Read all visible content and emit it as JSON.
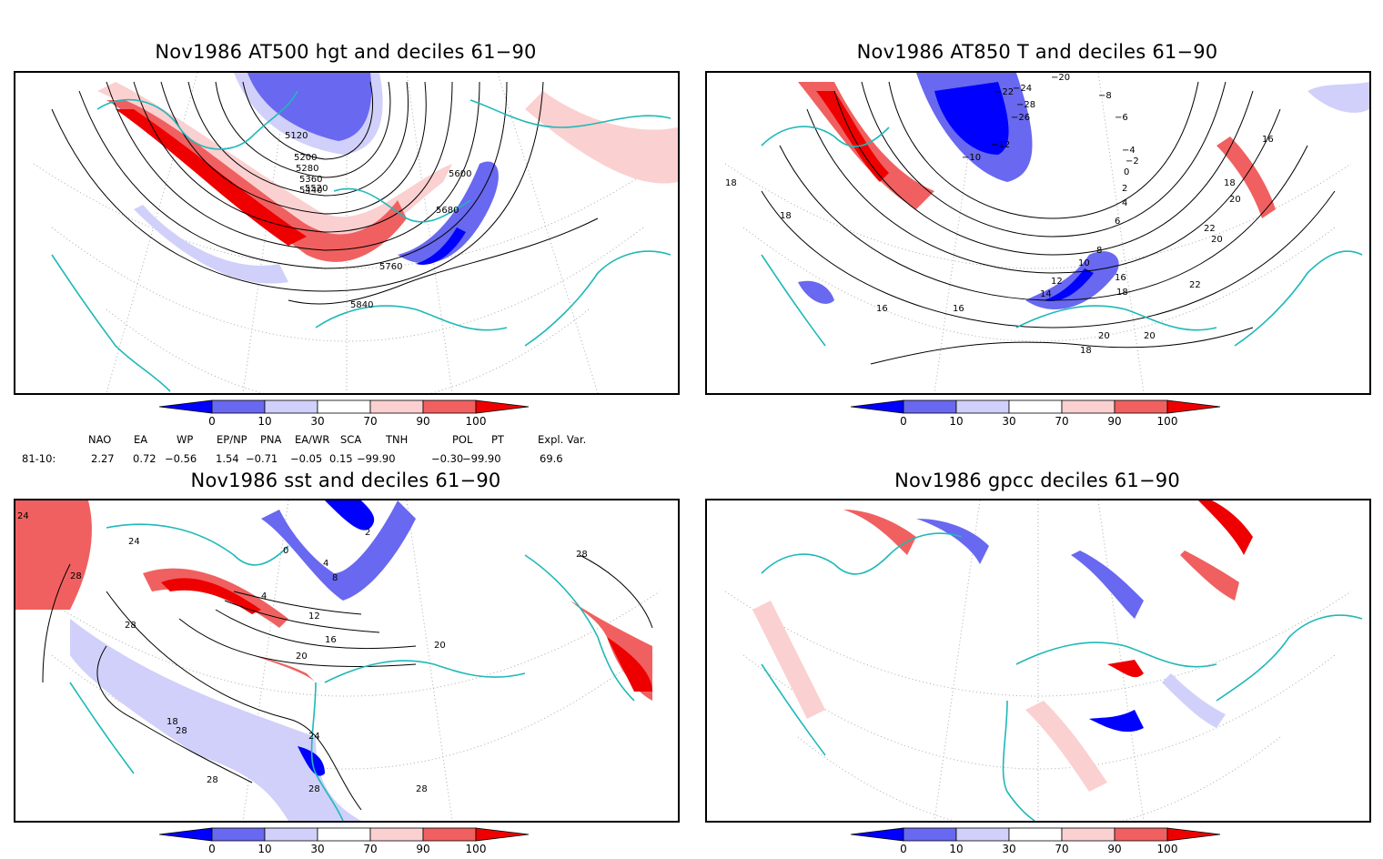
{
  "panels": [
    {
      "id": "hgt",
      "title": "Nov1986 AT500 hgt and deciles 61−90",
      "labels": [
        "5120",
        "5200",
        "5280",
        "5360",
        "5440",
        "5520",
        "5600",
        "5680",
        "5760",
        "5840"
      ]
    },
    {
      "id": "t850",
      "title": "Nov1986 AT850 T and deciles 61−90",
      "labels": [
        "−20",
        "−22",
        "−24",
        "−26",
        "−28",
        "−10",
        "−12",
        "−8",
        "−6",
        "−4",
        "−2",
        "0",
        "2",
        "4",
        "6",
        "8",
        "10",
        "12",
        "14",
        "16",
        "16",
        "16",
        "16",
        "18",
        "18",
        "18",
        "18",
        "20",
        "20",
        "20",
        "22",
        "22",
        "18",
        "20"
      ]
    },
    {
      "id": "sst",
      "title": "Nov1986 sst and deciles 61−90",
      "labels": [
        "24",
        "24",
        "28",
        "28",
        "28",
        "0",
        "2",
        "4",
        "4",
        "8",
        "12",
        "16",
        "20",
        "20",
        "24",
        "28",
        "28",
        "28",
        "18",
        "28"
      ]
    },
    {
      "id": "gpcc",
      "title": "Nov1986 gpcc deciles 61−90",
      "labels": []
    }
  ],
  "colorbar": {
    "ticks": [
      "0",
      "10",
      "30",
      "70",
      "90",
      "100"
    ],
    "colors": [
      "#0000ff",
      "#6868f0",
      "#d0d0fa",
      "#ffffff",
      "#fbd0d0",
      "#f06060",
      "#ee0000"
    ]
  },
  "indices": {
    "headers": [
      "NAO",
      "EA",
      "WP",
      "EP/NP",
      "PNA",
      "EA/WR",
      "SCA",
      "TNH",
      "POL",
      "PT",
      "Expl. Var."
    ],
    "row_label": "81-10:",
    "values": [
      "2.27",
      "0.72",
      "−0.56",
      "1.54",
      "−0.71",
      "−0.05",
      "0.15",
      "−99.90",
      "−0.30",
      "−99.90",
      "69.6"
    ]
  },
  "colors": {
    "coast": "#20b8b8",
    "contour": "#000000",
    "grid": "#aaaaaa"
  }
}
